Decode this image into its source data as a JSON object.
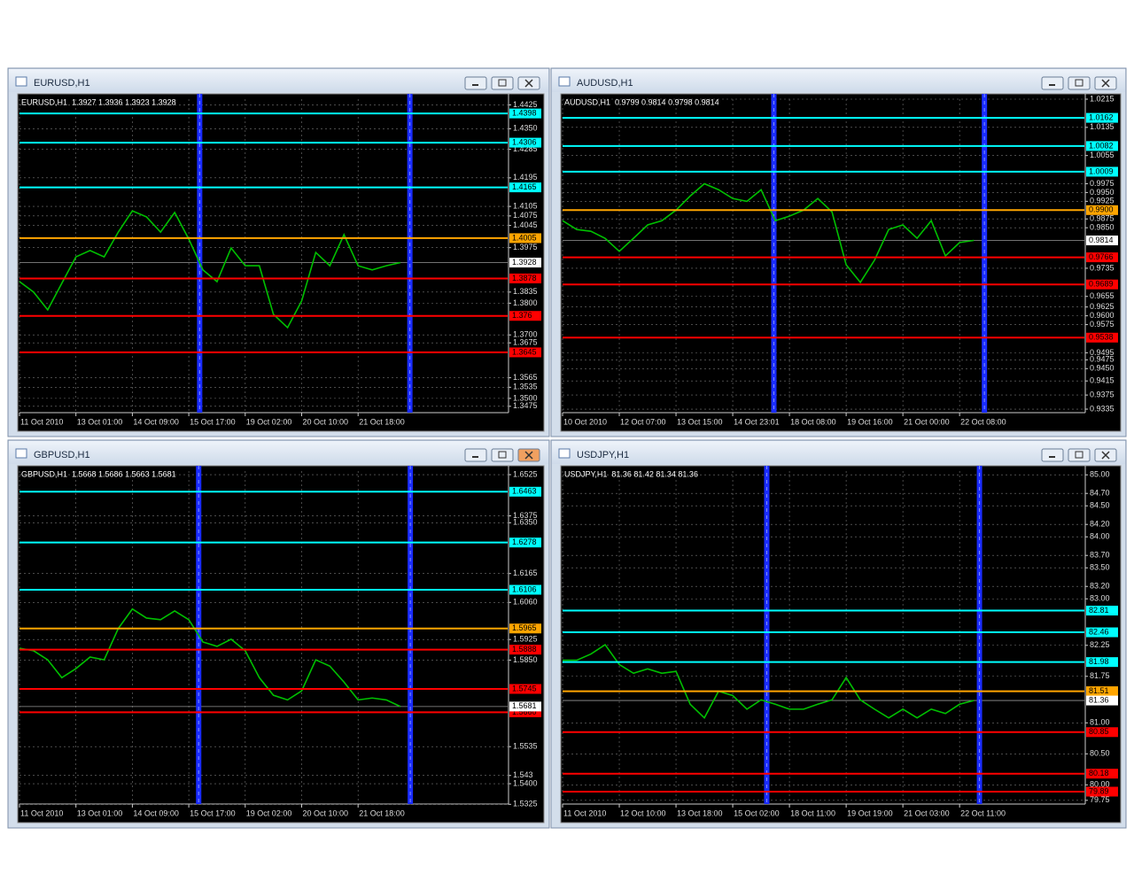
{
  "windows": [
    {
      "title": "EURUSD,H1",
      "header": "EURUSD,H1  1.3927 1.3936 1.3923 1.3928",
      "ylim": [
        1.3455,
        1.4443
      ],
      "yticks": [
        1.4425,
        {
          "value": 1.435,
          "label": "1.4350"
        },
        1.4285,
        1.4195,
        1.4105,
        1.4075,
        1.4045,
        1.3975,
        1.3835,
        {
          "value": 1.38,
          "label": "1.3800"
        },
        {
          "value": 1.37,
          "label": "1.3700"
        },
        1.3675,
        1.3565,
        1.3535,
        {
          "value": 1.35,
          "label": "1.3500"
        },
        1.3475
      ],
      "xlim": [
        0,
        34.6
      ],
      "xticks": [
        {
          "value": 0,
          "label": "11 Oct 2010"
        },
        {
          "value": 4,
          "label": "13 Oct 01:00"
        },
        {
          "value": 8,
          "label": "14 Oct 09:00"
        },
        {
          "value": 12,
          "label": "15 Oct 17:00"
        },
        {
          "value": 16,
          "label": "19 Oct 02:00"
        },
        {
          "value": 20,
          "label": "20 Oct 10:00"
        },
        {
          "value": 24,
          "label": "21 Oct 18:00"
        }
      ],
      "levels": [
        {
          "price": 1.4398,
          "color": "#00ffff"
        },
        {
          "price": 1.4306,
          "color": "#00ffff"
        },
        {
          "price": 1.4165,
          "color": "#00ffff"
        },
        {
          "price": 1.4005,
          "color": "#ffa500"
        },
        {
          "price": 1.3878,
          "color": "#ff0000"
        },
        {
          "price": 1.376,
          "color": "#ff0000"
        },
        {
          "price": 1.3645,
          "color": "#ff0000"
        }
      ],
      "current": 1.3928,
      "vlines": [
        12.77,
        27.67
      ],
      "color": "#00c000",
      "values": [
        1.3868,
        1.3835,
        1.3779,
        1.3863,
        1.3946,
        1.3966,
        1.3946,
        1.4024,
        1.4091,
        1.4072,
        1.4024,
        1.4086,
        1.4002,
        1.3905,
        1.3868,
        1.3974,
        1.3918,
        1.3918,
        1.3765,
        1.3723,
        1.3807,
        1.396,
        1.3918,
        1.4016,
        1.3918,
        1.3905,
        1.3918,
        1.3928
      ]
    },
    {
      "title": "AUDUSD,H1",
      "header": "AUDUSD,H1  0.9799 0.9814 0.9798 0.9814",
      "ylim": [
        0.9325,
        1.0215
      ],
      "yticks": [
        1.0215,
        1.0135,
        1.0055,
        0.9975,
        {
          "value": 0.995,
          "label": "0.9950"
        },
        0.9925,
        0.9875,
        {
          "value": 0.985,
          "label": "0.9850"
        },
        0.9735,
        0.9655,
        0.9625,
        {
          "value": 0.96,
          "label": "0.9600"
        },
        0.9575,
        0.9495,
        0.9475,
        {
          "value": 0.945,
          "label": "0.9450"
        },
        0.9415,
        0.9375,
        0.9335
      ],
      "xlim": [
        0,
        36.8
      ],
      "xticks": [
        {
          "value": 0,
          "label": "10 Oct 2010"
        },
        {
          "value": 4,
          "label": "12 Oct 07:00"
        },
        {
          "value": 8,
          "label": "13 Oct 15:00"
        },
        {
          "value": 12,
          "label": "14 Oct 23:01"
        },
        {
          "value": 16,
          "label": "18 Oct 08:00"
        },
        {
          "value": 20,
          "label": "19 Oct 16:00"
        },
        {
          "value": 24,
          "label": "21 Oct 00:00"
        },
        {
          "value": 28,
          "label": "22 Oct 08:00"
        }
      ],
      "levels": [
        {
          "price": 1.0162,
          "color": "#00ffff"
        },
        {
          "price": 1.0082,
          "color": "#00ffff"
        },
        {
          "price": 1.0009,
          "color": "#00ffff"
        },
        {
          "price": {
            "value": 0.99,
            "label": "0.9900"
          },
          "color": "#ffa500"
        },
        {
          "price": 0.9766,
          "color": "#ff0000"
        },
        {
          "price": 0.9689,
          "color": "#ff0000"
        },
        {
          "price": 0.9538,
          "color": "#ff0000"
        }
      ],
      "current": 0.9814,
      "vlines": [
        14.9,
        29.75
      ],
      "color": "#00c000",
      "values": [
        0.987,
        0.9845,
        0.984,
        0.982,
        0.9783,
        0.982,
        0.9858,
        0.987,
        0.99,
        0.994,
        0.9975,
        0.9958,
        0.9933,
        0.9925,
        0.9958,
        0.987,
        0.9883,
        0.99,
        0.9933,
        0.9895,
        0.9745,
        0.9695,
        0.9758,
        0.9845,
        0.9858,
        0.982,
        0.987,
        0.977,
        0.9808,
        0.9814
      ]
    },
    {
      "title": "GBPUSD,H1",
      "header": "GBPUSD,H1  1.5668 1.5686 1.5663 1.5681",
      "ylim": [
        1.5326,
        1.6538
      ],
      "yticks": [
        1.6525,
        1.6375,
        {
          "value": 1.635,
          "label": "1.6350"
        },
        1.6165,
        {
          "value": 1.606,
          "label": "1.6060"
        },
        1.5925,
        {
          "value": 1.585,
          "label": "1.5850"
        },
        1.5535,
        1.543,
        {
          "value": 1.54,
          "label": "1.5400"
        },
        1.5325
      ],
      "xlim": [
        0,
        34.6
      ],
      "xticks": [
        {
          "value": 0,
          "label": "11 Oct 2010"
        },
        {
          "value": 4,
          "label": "13 Oct 01:00"
        },
        {
          "value": 8,
          "label": "14 Oct 09:00"
        },
        {
          "value": 12,
          "label": "15 Oct 17:00"
        },
        {
          "value": 16,
          "label": "19 Oct 02:00"
        },
        {
          "value": 20,
          "label": "20 Oct 10:00"
        },
        {
          "value": 24,
          "label": "21 Oct 18:00"
        }
      ],
      "levels": [
        {
          "price": 1.6463,
          "color": "#00ffff"
        },
        {
          "price": 1.6278,
          "color": "#00ffff"
        },
        {
          "price": 1.6106,
          "color": "#00ffff"
        },
        {
          "price": 1.5965,
          "color": "#ffa500"
        },
        {
          "price": 1.5888,
          "color": "#ff0000"
        },
        {
          "price": 1.5745,
          "color": "#ff0000"
        },
        {
          "price": {
            "value": 1.566,
            "label": "1.5660"
          },
          "color": "#ff0000"
        }
      ],
      "current": 1.5681,
      "vlines": [
        12.7,
        27.7
      ],
      "color": "#00c000",
      "values": [
        1.5893,
        1.5884,
        1.5851,
        1.5786,
        1.5819,
        1.5861,
        1.5851,
        1.5965,
        1.6036,
        1.6003,
        1.5997,
        1.6029,
        1.5997,
        1.5916,
        1.59,
        1.5926,
        1.5884,
        1.5786,
        1.5722,
        1.5705,
        1.5738,
        1.5851,
        1.5828,
        1.577,
        1.5705,
        1.5712,
        1.5705,
        1.5681
      ]
    },
    {
      "title": "USDJPY,H1",
      "header": "USDJPY,H1  81.36 81.42 81.34 81.36",
      "ylim": [
        79.69,
        85.06
      ],
      "yticks": [
        {
          "value": 85,
          "label": "85.00"
        },
        {
          "value": 84.7,
          "label": "84.70"
        },
        {
          "value": 84.5,
          "label": "84.50"
        },
        {
          "value": 84.2,
          "label": "84.20"
        },
        {
          "value": 84,
          "label": "84.00"
        },
        {
          "value": 83.7,
          "label": "83.70"
        },
        {
          "value": 83.5,
          "label": "83.50"
        },
        {
          "value": 83.2,
          "label": "83.20"
        },
        {
          "value": 83,
          "label": "83.00"
        },
        82.25,
        81.75,
        {
          "value": 81,
          "label": "81.00"
        },
        {
          "value": 80.5,
          "label": "80.50"
        },
        {
          "value": 80,
          "label": "80.00"
        },
        79.75
      ],
      "xlim": [
        0,
        36.8
      ],
      "xticks": [
        {
          "value": 0,
          "label": "11 Oct 2010"
        },
        {
          "value": 4,
          "label": "12 Oct 10:00"
        },
        {
          "value": 8,
          "label": "13 Oct 18:00"
        },
        {
          "value": 12,
          "label": "15 Oct 02:00"
        },
        {
          "value": 16,
          "label": "18 Oct 11:00"
        },
        {
          "value": 20,
          "label": "19 Oct 19:00"
        },
        {
          "value": 24,
          "label": "21 Oct 03:00"
        },
        {
          "value": 28,
          "label": "22 Oct 11:00"
        }
      ],
      "levels": [
        {
          "price": 82.81,
          "color": "#00ffff"
        },
        {
          "price": 82.46,
          "color": "#00ffff"
        },
        {
          "price": 81.98,
          "color": "#00ffff"
        },
        {
          "price": 81.51,
          "color": "#ffa500"
        },
        {
          "price": 80.85,
          "color": "#ff0000"
        },
        {
          "price": 80.18,
          "color": "#ff0000"
        },
        {
          "price": 79.89,
          "color": "#ff0000"
        }
      ],
      "current": 81.36,
      "vlines": [
        14.4,
        29.4
      ],
      "color": "#00c000",
      "values": [
        82.01,
        82.01,
        82.11,
        82.26,
        81.94,
        81.8,
        81.87,
        81.8,
        81.83,
        81.3,
        81.08,
        81.51,
        81.44,
        81.22,
        81.37,
        81.3,
        81.22,
        81.22,
        81.3,
        81.37,
        81.73,
        81.37,
        81.22,
        81.08,
        81.22,
        81.08,
        81.22,
        81.15,
        81.3,
        81.36
      ]
    }
  ]
}
